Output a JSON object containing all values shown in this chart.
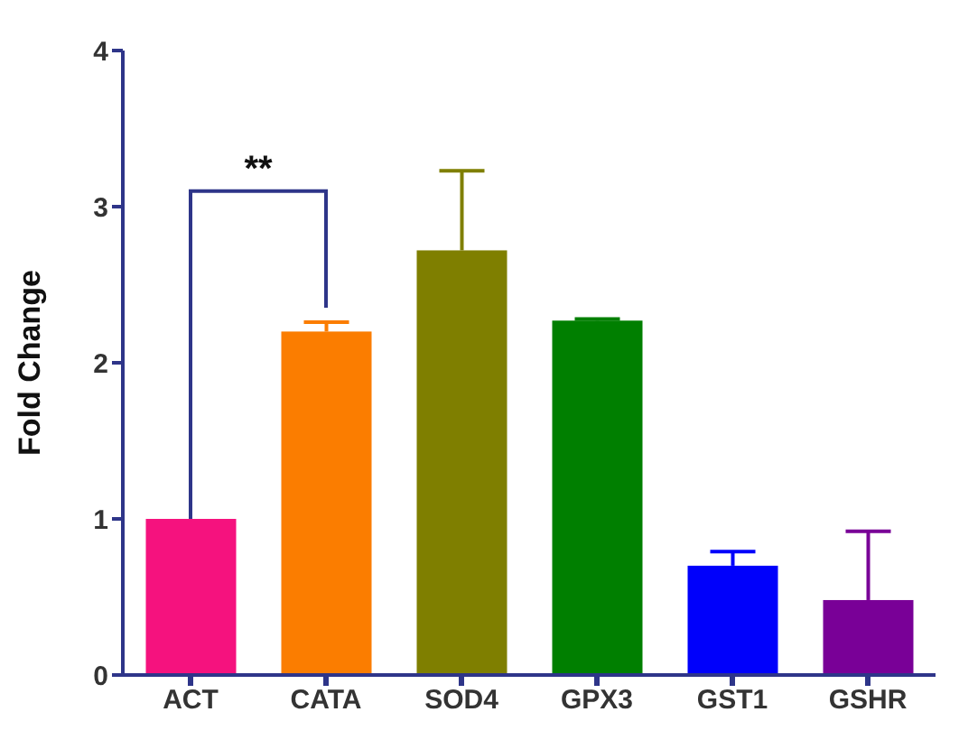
{
  "chart_data": {
    "type": "bar",
    "ylabel": "Fold Change",
    "categories": [
      "ACT",
      "CATA",
      "SOD4",
      "GPX3",
      "GST1",
      "GSHR"
    ],
    "values": [
      1.0,
      2.2,
      2.72,
      2.27,
      0.7,
      0.48
    ],
    "colors": [
      "#f5127e",
      "#fb7d00",
      "#7f7f00",
      "#007f00",
      "#0000fb",
      "#790097"
    ],
    "errors": [
      null,
      [
        2.2,
        2.26
      ],
      [
        2.72,
        3.23
      ],
      [
        2.27,
        2.28
      ],
      [
        0.7,
        0.79
      ],
      [
        0.48,
        0.92
      ]
    ],
    "ylim": [
      0,
      4
    ],
    "yticks": [
      0,
      1,
      2,
      3,
      4
    ],
    "annotations": [
      "**"
    ]
  }
}
